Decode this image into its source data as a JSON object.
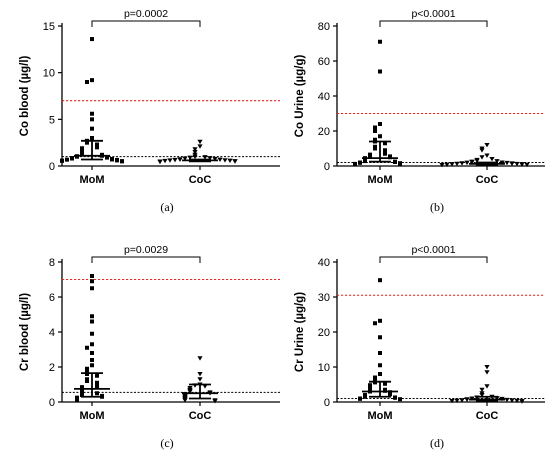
{
  "chart_data": [
    {
      "type": "scatter",
      "caption": "(a)",
      "ylabel": "Co blood (µg/l)",
      "ylim": [
        0,
        15
      ],
      "yticks": [
        0,
        5,
        10,
        15
      ],
      "categories": [
        "MoM",
        "CoC"
      ],
      "pvalue": "p=0.0002",
      "red_threshold": 7,
      "black_threshold": 1.0,
      "groups": [
        {
          "name": "MoM",
          "marker": "square",
          "median": 1.1,
          "q1": 0.7,
          "q3": 2.7,
          "points": [
            13.6,
            9.2,
            9.0,
            5.6,
            5.0,
            4.0,
            3.0,
            2.7,
            2.5,
            2.3,
            2.1,
            2.0,
            1.9,
            1.8,
            1.6,
            1.5,
            1.4,
            1.3,
            1.2,
            1.1,
            1.05,
            1.0,
            0.95,
            0.9,
            0.85,
            0.8,
            0.75,
            0.7,
            0.68,
            0.65,
            0.6,
            0.58,
            0.55,
            0.52,
            0.5
          ]
        },
        {
          "name": "CoC",
          "marker": "triangle-down",
          "median": 0.6,
          "q1": 0.5,
          "q3": 0.7,
          "points": [
            2.6,
            2.1,
            1.8,
            1.5,
            1.2,
            1.0,
            0.95,
            0.9,
            0.85,
            0.8,
            0.75,
            0.72,
            0.7,
            0.68,
            0.65,
            0.62,
            0.6,
            0.58,
            0.55,
            0.52,
            0.5,
            0.48,
            0.45
          ]
        }
      ]
    },
    {
      "type": "scatter",
      "caption": "(b)",
      "ylabel": "Co Urine (µg/g)",
      "ylim": [
        0,
        80
      ],
      "yticks": [
        0,
        20,
        40,
        60,
        80
      ],
      "categories": [
        "MoM",
        "CoC"
      ],
      "pvalue": "p<0.0001",
      "red_threshold": 30,
      "black_threshold": 2,
      "groups": [
        {
          "name": "MoM",
          "marker": "square",
          "median": 4.5,
          "q1": 2.5,
          "q3": 14,
          "points": [
            71,
            54,
            24,
            22,
            20,
            17,
            15,
            14,
            13,
            11,
            10,
            9,
            8,
            7,
            6.5,
            6,
            5.5,
            5,
            4.5,
            4,
            3.5,
            3,
            2.8,
            2.5,
            2.3,
            2.0,
            1.8,
            1.6,
            1.4,
            1.2
          ]
        },
        {
          "name": "CoC",
          "marker": "triangle-down",
          "median": 1.2,
          "q1": 0.8,
          "q3": 2.0,
          "points": [
            12,
            10,
            9,
            6,
            5,
            4,
            3.5,
            3,
            2.8,
            2.5,
            2.3,
            2.0,
            1.9,
            1.8,
            1.6,
            1.5,
            1.4,
            1.3,
            1.2,
            1.1,
            1.0,
            0.9,
            0.8,
            0.7,
            0.6
          ]
        }
      ]
    },
    {
      "type": "scatter",
      "caption": "(c)",
      "ylabel": "Cr blood (µg/l)",
      "ylim": [
        0,
        8
      ],
      "yticks": [
        0,
        2,
        4,
        6,
        8
      ],
      "categories": [
        "MoM",
        "CoC"
      ],
      "pvalue": "p=0.0029",
      "red_threshold": 7,
      "black_threshold": 0.55,
      "groups": [
        {
          "name": "MoM",
          "marker": "square",
          "median": 0.75,
          "q1": 0.3,
          "q3": 1.65,
          "points": [
            7.2,
            6.9,
            6.5,
            4.9,
            4.6,
            3.9,
            3.3,
            3.1,
            2.8,
            2.4,
            2.1,
            1.9,
            1.7,
            1.6,
            1.5,
            1.3,
            1.2,
            1.1,
            1.0,
            0.9,
            0.85,
            0.8,
            0.7,
            0.6,
            0.5,
            0.45,
            0.4,
            0.35,
            0.3,
            0.25,
            0.2,
            0.15,
            0.1
          ]
        },
        {
          "name": "CoC",
          "marker": "triangle-down",
          "median": 0.5,
          "q1": 0.2,
          "q3": 1.0,
          "points": [
            2.5,
            1.6,
            1.3,
            1.0,
            0.95,
            0.9,
            0.8,
            0.7,
            0.65,
            0.6,
            0.55,
            0.5,
            0.45,
            0.4,
            0.35,
            0.3,
            0.25,
            0.2,
            0.15,
            0.1,
            0.1,
            0.05
          ]
        }
      ]
    },
    {
      "type": "scatter",
      "caption": "(d)",
      "ylabel": "Cr Urine (µg/g)",
      "ylim": [
        0,
        40
      ],
      "yticks": [
        0,
        10,
        20,
        30,
        40
      ],
      "categories": [
        "MoM",
        "CoC"
      ],
      "pvalue": "p<0.0001",
      "red_threshold": 30.5,
      "black_threshold": 1.0,
      "groups": [
        {
          "name": "MoM",
          "marker": "square",
          "median": 3.0,
          "q1": 1.5,
          "q3": 5.8,
          "points": [
            34.8,
            23.2,
            22.5,
            18.5,
            14.0,
            10.5,
            8.0,
            7.0,
            6.0,
            5.6,
            5.2,
            4.8,
            4.5,
            4.0,
            3.5,
            3.2,
            3.0,
            2.8,
            2.5,
            2.2,
            2.0,
            1.8,
            1.6,
            1.5,
            1.3,
            1.2,
            1.0,
            0.9,
            0.8
          ]
        },
        {
          "name": "CoC",
          "marker": "triangle-down",
          "median": 0.7,
          "q1": 0.3,
          "q3": 1.5,
          "points": [
            10.0,
            8.5,
            4.5,
            3.5,
            2.5,
            2.0,
            1.5,
            1.3,
            1.2,
            1.1,
            1.0,
            0.9,
            0.8,
            0.7,
            0.6,
            0.5,
            0.45,
            0.4,
            0.35,
            0.3,
            0.25,
            0.2
          ]
        }
      ]
    }
  ]
}
